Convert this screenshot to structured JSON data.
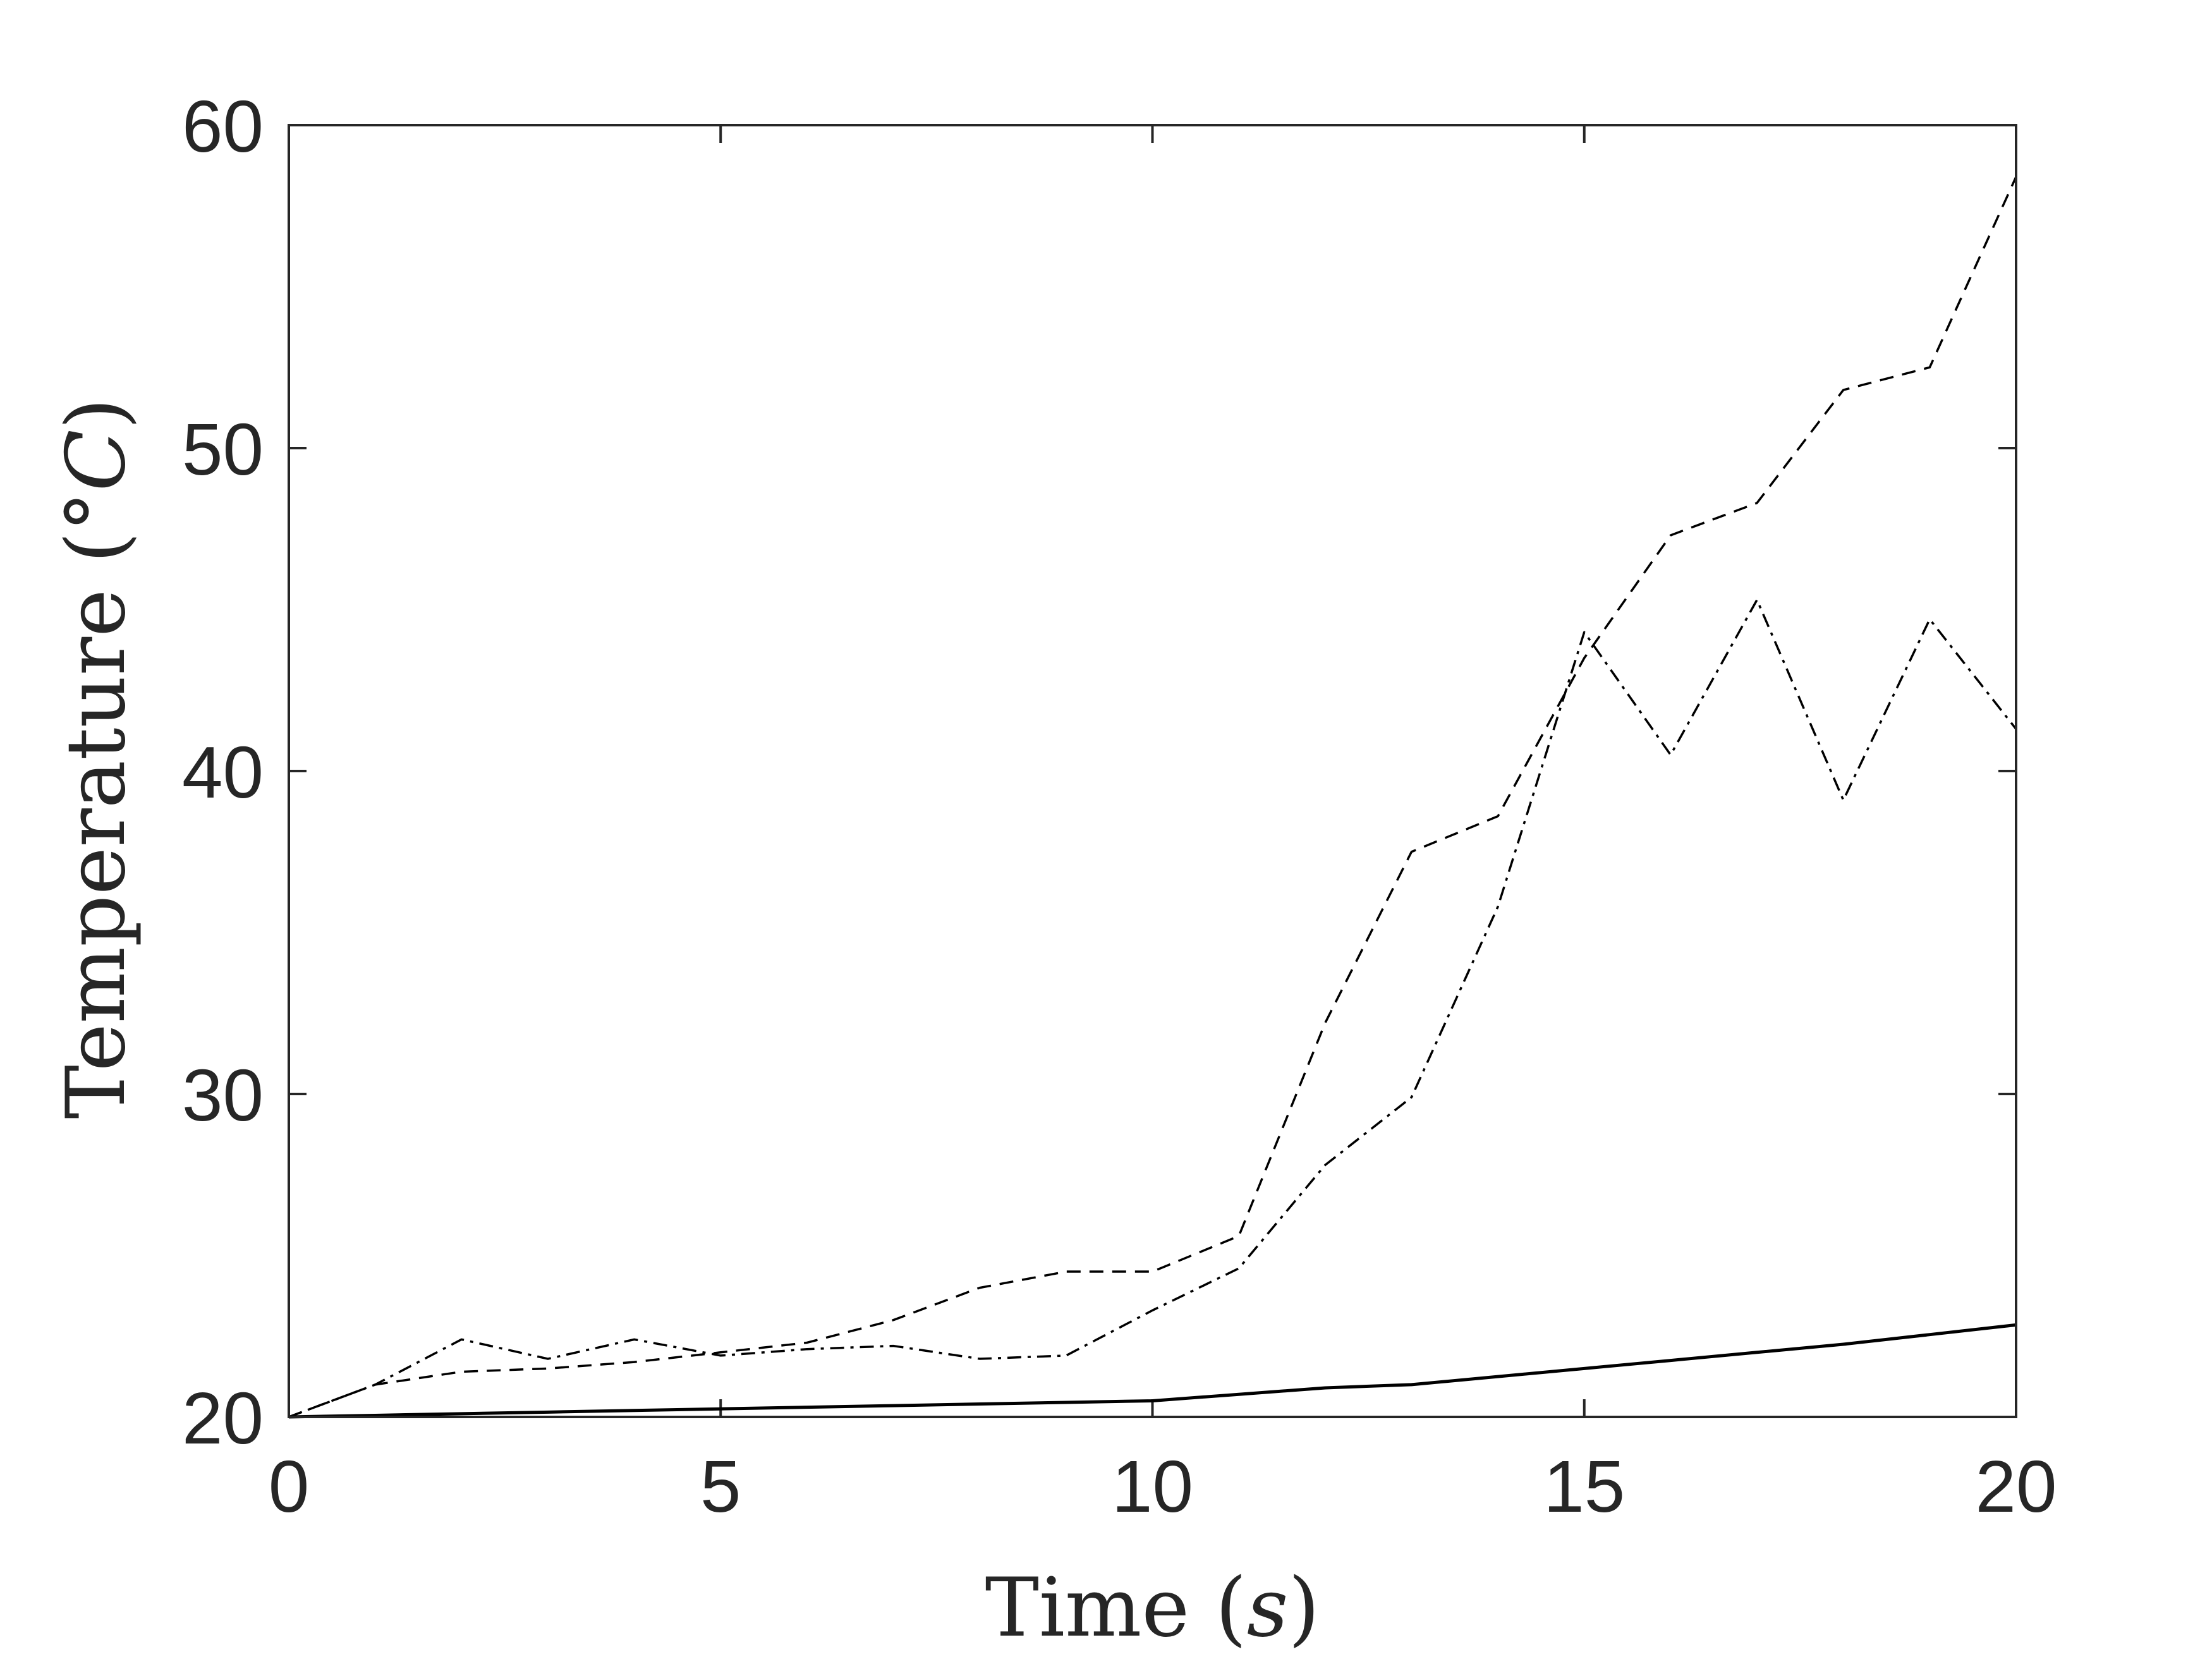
{
  "chart_data": {
    "type": "line",
    "xlabel": "Time (s)",
    "ylabel": "Temperature (°C)",
    "xlabel_parts": {
      "prefix": "Time (",
      "math": "s",
      "suffix": ")"
    },
    "ylabel_parts": {
      "prefix": "Temperature (°",
      "math": "C",
      "suffix": ")"
    },
    "xlim": [
      0,
      20
    ],
    "ylim": [
      20,
      60
    ],
    "xticks": [
      0,
      5,
      10,
      15,
      20
    ],
    "yticks": [
      20,
      30,
      40,
      50,
      60
    ],
    "grid": false,
    "colors": {
      "line": "#000000",
      "axis": "#262626"
    },
    "x": [
      0,
      1,
      2,
      3,
      4,
      5,
      6,
      7,
      8,
      9,
      10,
      11,
      12,
      13,
      14,
      15,
      16,
      17,
      18,
      19,
      20
    ],
    "series": [
      {
        "style": "solid",
        "values": [
          20.0,
          20.05,
          20.1,
          20.15,
          20.2,
          20.25,
          20.3,
          20.35,
          20.4,
          20.45,
          20.5,
          20.7,
          20.9,
          21.0,
          21.25,
          21.5,
          21.75,
          22.0,
          22.25,
          22.55,
          22.85
        ]
      },
      {
        "style": "dashed",
        "values": [
          20.0,
          21.0,
          21.4,
          21.5,
          21.7,
          22.0,
          22.3,
          23.0,
          24.0,
          24.5,
          24.5,
          25.6,
          32.2,
          37.5,
          38.6,
          43.5,
          47.3,
          48.3,
          51.8,
          52.5,
          58.4
        ]
      },
      {
        "style": "dashdot",
        "values": [
          20.0,
          21.0,
          22.4,
          21.8,
          22.4,
          21.9,
          22.1,
          22.2,
          21.8,
          21.9,
          23.3,
          24.6,
          27.8,
          29.9,
          35.8,
          44.3,
          40.5,
          45.3,
          39.1,
          44.7,
          41.3
        ]
      }
    ]
  }
}
